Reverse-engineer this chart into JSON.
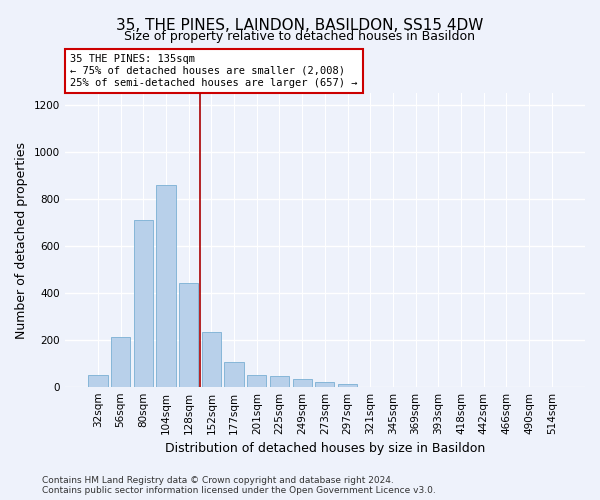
{
  "title": "35, THE PINES, LAINDON, BASILDON, SS15 4DW",
  "subtitle": "Size of property relative to detached houses in Basildon",
  "xlabel": "Distribution of detached houses by size in Basildon",
  "ylabel": "Number of detached properties",
  "categories": [
    "32sqm",
    "56sqm",
    "80sqm",
    "104sqm",
    "128sqm",
    "152sqm",
    "177sqm",
    "201sqm",
    "225sqm",
    "249sqm",
    "273sqm",
    "297sqm",
    "321sqm",
    "345sqm",
    "369sqm",
    "393sqm",
    "418sqm",
    "442sqm",
    "466sqm",
    "490sqm",
    "514sqm"
  ],
  "values": [
    50,
    210,
    710,
    860,
    440,
    235,
    105,
    50,
    45,
    33,
    18,
    10,
    0,
    0,
    0,
    0,
    0,
    0,
    0,
    0,
    0
  ],
  "bar_color": "#b8d0ea",
  "bar_edge_color": "#7aafd4",
  "vline_x": 4.5,
  "vline_color": "#aa0000",
  "annotation_text": "35 THE PINES: 135sqm\n← 75% of detached houses are smaller (2,008)\n25% of semi-detached houses are larger (657) →",
  "annotation_box_color": "#ffffff",
  "annotation_box_edge": "#cc0000",
  "ylim": [
    0,
    1250
  ],
  "yticks": [
    0,
    200,
    400,
    600,
    800,
    1000,
    1200
  ],
  "footer_line1": "Contains HM Land Registry data © Crown copyright and database right 2024.",
  "footer_line2": "Contains public sector information licensed under the Open Government Licence v3.0.",
  "background_color": "#eef2fb",
  "grid_color": "#ffffff",
  "title_fontsize": 11,
  "xlabel_fontsize": 9,
  "ylabel_fontsize": 9,
  "tick_fontsize": 7.5,
  "footer_fontsize": 6.5
}
